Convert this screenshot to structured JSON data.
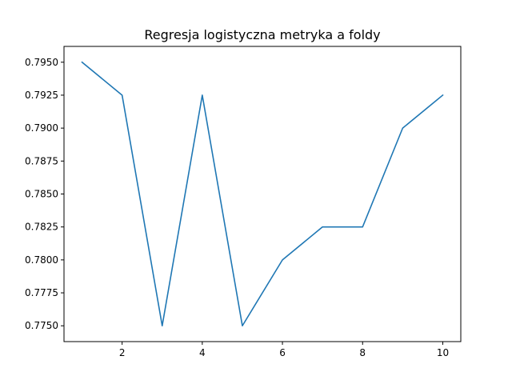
{
  "chart_data": {
    "type": "line",
    "title": "Regresja logistyczna metryka a foldy",
    "xlabel": "",
    "ylabel": "",
    "x": [
      1,
      2,
      3,
      4,
      5,
      6,
      7,
      8,
      9,
      10
    ],
    "series": [
      {
        "values": [
          0.795,
          0.7925,
          0.775,
          0.7925,
          0.775,
          0.78,
          0.7825,
          0.7825,
          0.79,
          0.7925
        ],
        "color": "#1f77b4"
      }
    ],
    "xlim": [
      0.55,
      10.45
    ],
    "ylim": [
      0.7738,
      0.7962
    ],
    "xticks": [
      2,
      4,
      6,
      8,
      10
    ],
    "xtick_labels": [
      "2",
      "4",
      "6",
      "8",
      "10"
    ],
    "yticks": [
      0.775,
      0.7775,
      0.78,
      0.7825,
      0.785,
      0.7875,
      0.79,
      0.7925,
      0.795
    ],
    "ytick_labels": [
      "0.7750",
      "0.7775",
      "0.7800",
      "0.7825",
      "0.7850",
      "0.7875",
      "0.7900",
      "0.7925",
      "0.7950"
    ],
    "grid": false,
    "legend": "none"
  }
}
